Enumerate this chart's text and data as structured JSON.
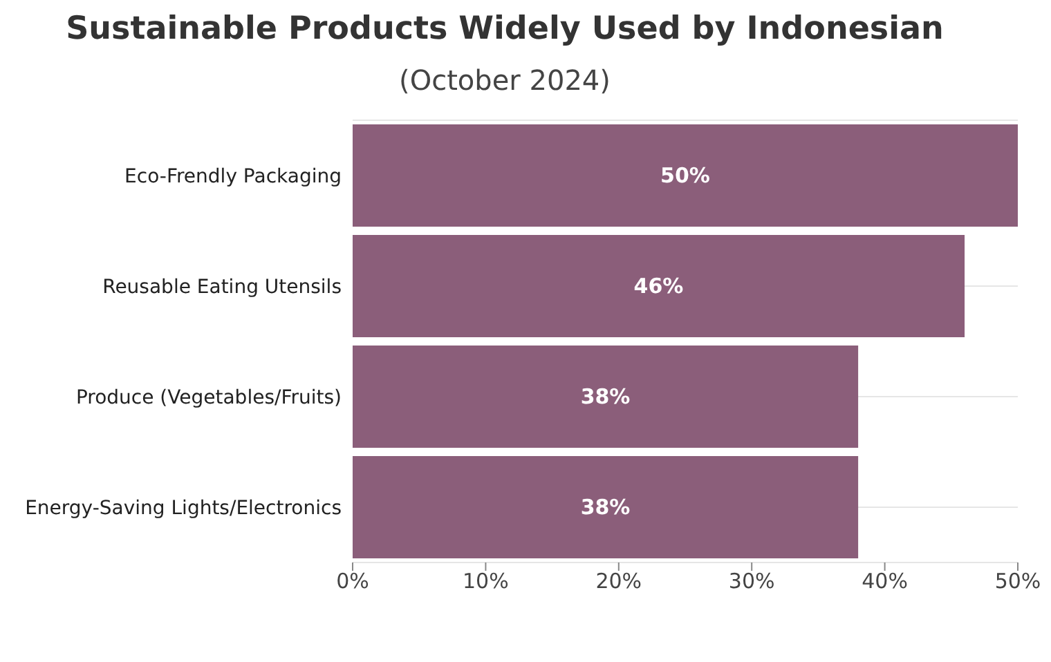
{
  "chart_data": {
    "type": "bar",
    "orientation": "horizontal",
    "title": "Sustainable Products Widely Used by Indonesian",
    "subtitle": "(October 2024)",
    "categories": [
      "Eco-Frendly Packaging",
      "Reusable Eating Utensils",
      "Produce (Vegetables/Fruits)",
      "Energy-Saving Lights/Electronics"
    ],
    "values": [
      50,
      46,
      38,
      38
    ],
    "color": "#8b5e7a",
    "value_labels": [
      "50%",
      "46%",
      "38%",
      "38%"
    ],
    "xlim": [
      0,
      50
    ],
    "xticks": [
      {
        "value": 0,
        "label": "0%"
      },
      {
        "value": 10,
        "label": "10%"
      },
      {
        "value": 20,
        "label": "20%"
      },
      {
        "value": 30,
        "label": "30%"
      },
      {
        "value": 40,
        "label": "40%"
      },
      {
        "value": 50,
        "label": "50%"
      }
    ],
    "grid": "y"
  }
}
